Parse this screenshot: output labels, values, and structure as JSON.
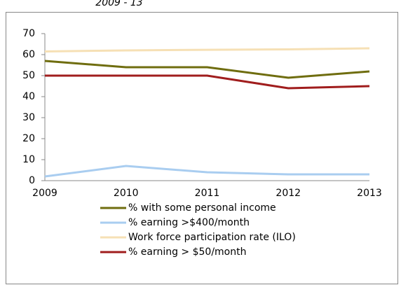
{
  "chart_data": {
    "type": "line",
    "title": "2009 - 13",
    "categories": [
      "2009",
      "2010",
      "2011",
      "2012",
      "2013"
    ],
    "series": [
      {
        "name": "% with some personal income",
        "color": "#6f6d0f",
        "values": [
          57,
          54,
          54,
          49,
          52
        ]
      },
      {
        "name": "% earning >$400/month",
        "color": "#a9cdf0",
        "values": [
          2,
          7,
          4,
          3,
          3
        ]
      },
      {
        "name": "Work force participation rate (ILO)",
        "color": "#f6e0b5",
        "values": [
          61.5,
          62,
          62.3,
          62.5,
          63
        ]
      },
      {
        "name": "% earning > $50/month",
        "color": "#a01d1d",
        "values": [
          50,
          50,
          50,
          44,
          45
        ]
      }
    ],
    "ylim": [
      0,
      70
    ],
    "yticks": [
      0,
      10,
      20,
      30,
      40,
      50,
      60,
      70
    ],
    "grid": false,
    "legend": "bottom"
  }
}
